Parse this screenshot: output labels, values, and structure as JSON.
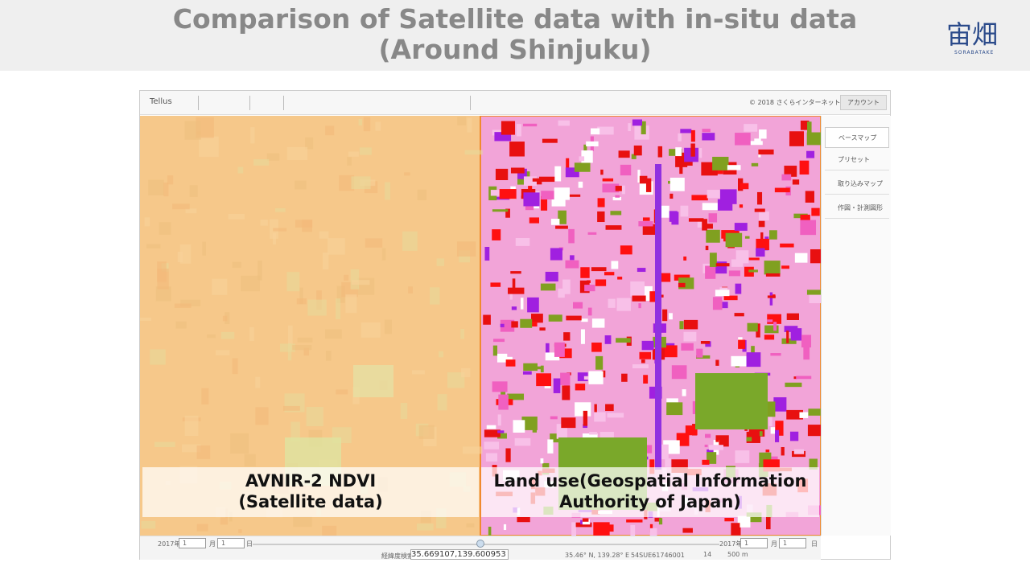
{
  "header": {
    "title_line1": "Comparison of Satellite data with in-situ data",
    "title_line2": "(Around Shinjuku)",
    "logo": "宙畑",
    "logo_sub": "SORABATAKE"
  },
  "toolbar": {
    "brand": "Tellus",
    "copyright": "© 2018 さくらインターネット",
    "account": "アカウント"
  },
  "side_panel": [
    "ベースマップ",
    "プリセット",
    "取り込みマップ",
    "作図・計測図形"
  ],
  "captions": {
    "left": [
      "AVNIR-2 NDVI",
      "(Satellite data)"
    ],
    "right": [
      "Land use(Geospatial Information",
      "Authority of Japan)"
    ]
  },
  "date_left": {
    "year": "2017年",
    "month": "1",
    "month_unit": "月",
    "day": "1",
    "day_unit": "日"
  },
  "date_right": {
    "year": "2017年",
    "month": "1",
    "month_unit": "月",
    "day": "1",
    "day_unit": "日"
  },
  "status": {
    "search_label": "経緯度検索",
    "search_value": "35.669107,139.600953",
    "cursor": "35.46° N, 139.28° E",
    "mesh": "54SUE61746001",
    "zoom": "14",
    "scale": "500 m"
  }
}
